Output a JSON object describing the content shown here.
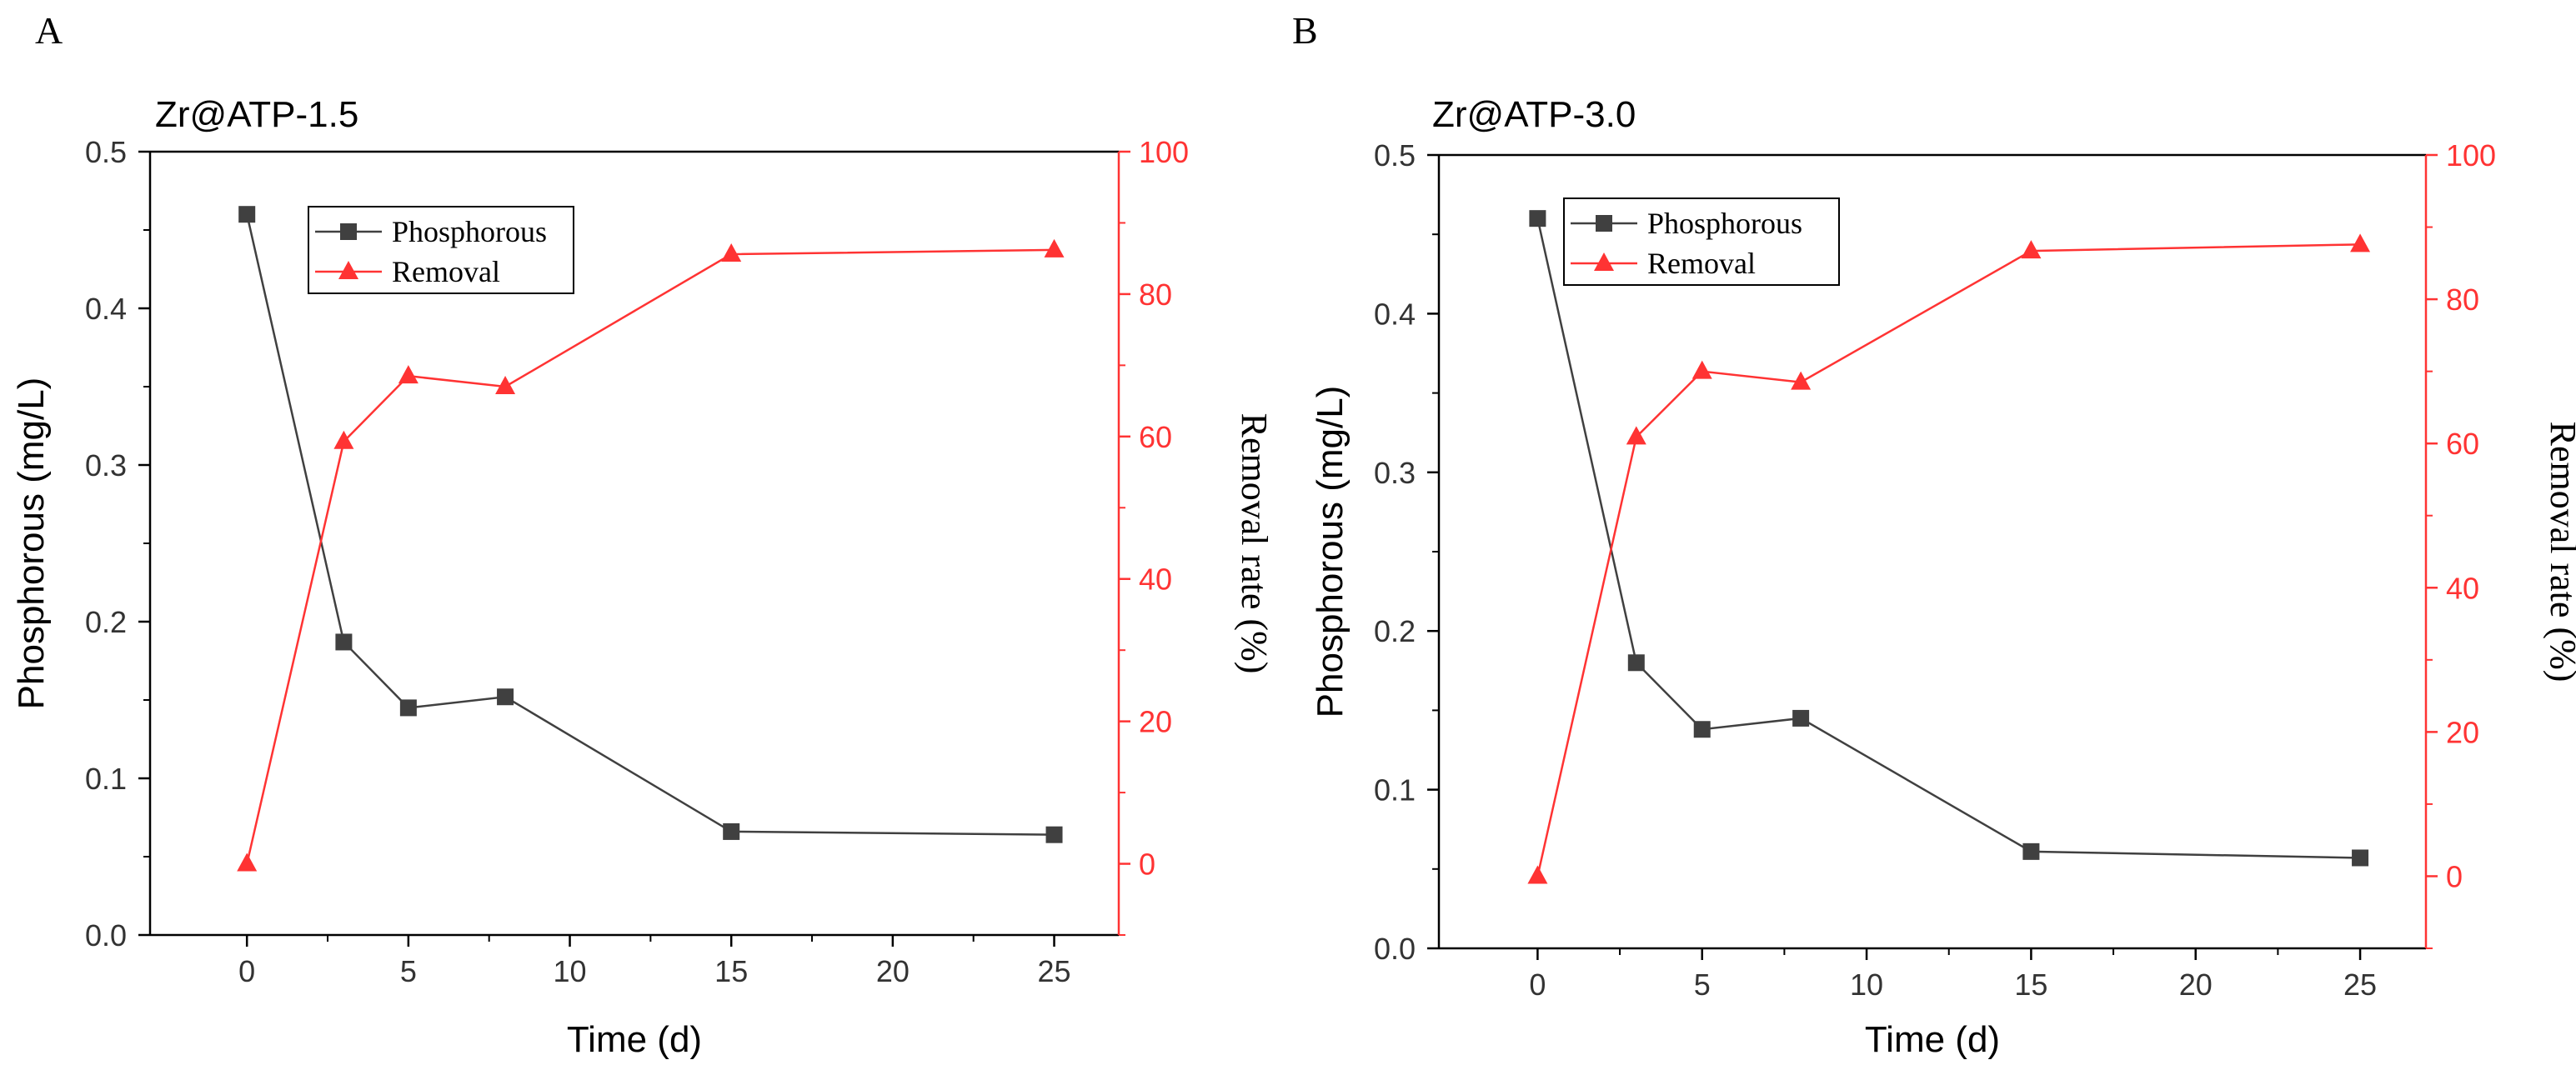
{
  "colors": {
    "phosphorous": "#404040",
    "removal": "#ff3333",
    "axis": "#000000"
  },
  "chart_data": [
    {
      "type": "line",
      "panel_label": "A",
      "title": "Zr@ATP-1.5",
      "xlabel": "Time (d)",
      "ylabel": "Phosphorous (mg/L)",
      "y2label": "Removal rate (%)",
      "x": [
        0,
        3,
        5,
        8,
        15,
        25
      ],
      "xlim": [
        -3,
        27
      ],
      "xticks": [
        0,
        5,
        10,
        15,
        20,
        25
      ],
      "ylim": [
        0,
        0.5
      ],
      "yticks": [
        0.0,
        0.1,
        0.2,
        0.3,
        0.4,
        0.5
      ],
      "ytick_labels": [
        "0.0",
        "0.1",
        "0.2",
        "0.3",
        "0.4",
        "0.5"
      ],
      "y2lim": [
        -10,
        100
      ],
      "y2ticks": [
        0,
        20,
        40,
        60,
        80,
        100
      ],
      "legend_position": "top-left",
      "series": [
        {
          "name": "Phosphorous",
          "axis": "left",
          "marker": "square",
          "values": [
            0.46,
            0.187,
            0.145,
            0.152,
            0.066,
            0.064
          ]
        },
        {
          "name": "Removal",
          "axis": "right",
          "marker": "triangle",
          "values": [
            0,
            59.3,
            68.5,
            67.0,
            85.6,
            86.2
          ]
        }
      ]
    },
    {
      "type": "line",
      "panel_label": "B",
      "title": "Zr@ATP-3.0",
      "xlabel": "Time (d)",
      "ylabel": "Phosphorous (mg/L)",
      "y2label": "Removal rate (%)",
      "x": [
        0,
        3,
        5,
        8,
        15,
        25
      ],
      "xlim": [
        -3,
        27
      ],
      "xticks": [
        0,
        5,
        10,
        15,
        20,
        25
      ],
      "ylim": [
        0,
        0.5
      ],
      "yticks": [
        0.0,
        0.1,
        0.2,
        0.3,
        0.4,
        0.5
      ],
      "ytick_labels": [
        "0.0",
        "0.1",
        "0.2",
        "0.3",
        "0.4",
        "0.5"
      ],
      "y2lim": [
        -10,
        100
      ],
      "y2ticks": [
        0,
        20,
        40,
        60,
        80,
        100
      ],
      "legend_position": "top-left",
      "series": [
        {
          "name": "Phosphorous",
          "axis": "left",
          "marker": "square",
          "values": [
            0.46,
            0.18,
            0.138,
            0.145,
            0.061,
            0.057
          ]
        },
        {
          "name": "Removal",
          "axis": "right",
          "marker": "triangle",
          "values": [
            0,
            60.9,
            70.0,
            68.5,
            86.7,
            87.6
          ]
        }
      ]
    }
  ]
}
